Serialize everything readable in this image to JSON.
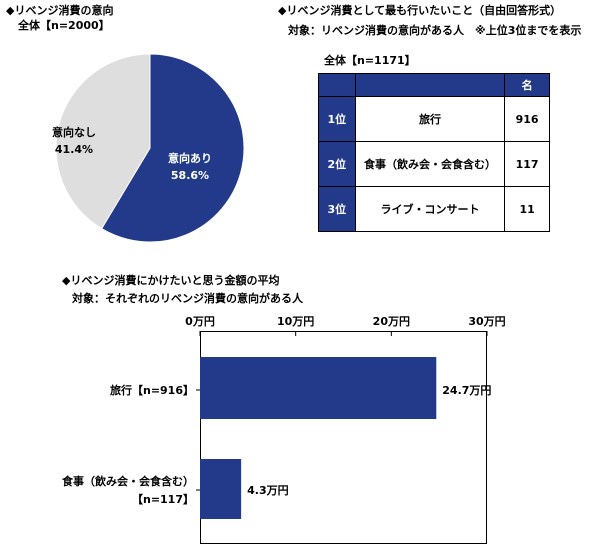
{
  "pie": {
    "title": "◆リベンジ消費の意向",
    "subtitle": "全体【n=2000】",
    "colors": {
      "yes": "#233a8a",
      "no": "#dedede"
    }
  },
  "ranking": {
    "title": "◆リベンジ消費として最も行いたいこと（自由回答形式）",
    "subtitle": "対象：リベンジ消費の意向がある人　※上位3位までを表示",
    "sample": "全体【n=1171】",
    "unit_header": "名",
    "rows": [
      {
        "rank": "1位",
        "item": "旅行",
        "count": "916"
      },
      {
        "rank": "2位",
        "item": "食事（飲み会・会食含む）",
        "count": "117"
      },
      {
        "rank": "3位",
        "item": "ライブ・コンサート",
        "count": "11"
      }
    ]
  },
  "bar": {
    "title": "◆リベンジ消費にかけたいと思う金額の平均",
    "subtitle": "対象：それぞれのリベンジ消費の意向がある人",
    "category_lines": [
      [
        "旅行【n=916】"
      ],
      [
        "食事（飲み会・会食含む）",
        "【n=117】"
      ]
    ],
    "value_labels": [
      "24.7万円",
      "4.3万円"
    ],
    "tick_labels": [
      "0万円",
      "10万円",
      "20万円",
      "30万円"
    ],
    "color": "#233a8a"
  },
  "chart_data": [
    {
      "type": "pie",
      "title": "◆リベンジ消費の意向",
      "subtitle": "全体【n=2000】",
      "labels": [
        "意向あり",
        "意向なし"
      ],
      "values": [
        58.6,
        41.4
      ],
      "value_labels": [
        "58.6%",
        "41.4%"
      ],
      "colors": [
        "#233a8a",
        "#dedede"
      ]
    },
    {
      "type": "bar",
      "orientation": "horizontal",
      "title": "◆リベンジ消費にかけたいと思う金額の平均",
      "subtitle": "対象：それぞれのリベンジ消費の意向がある人",
      "categories": [
        "旅行【n=916】",
        "食事（飲み会・会食含む）【n=117】"
      ],
      "values": [
        24.7,
        4.3
      ],
      "unit": "万円",
      "xlim": [
        0,
        30
      ],
      "ticks": [
        0,
        10,
        20,
        30
      ]
    }
  ]
}
